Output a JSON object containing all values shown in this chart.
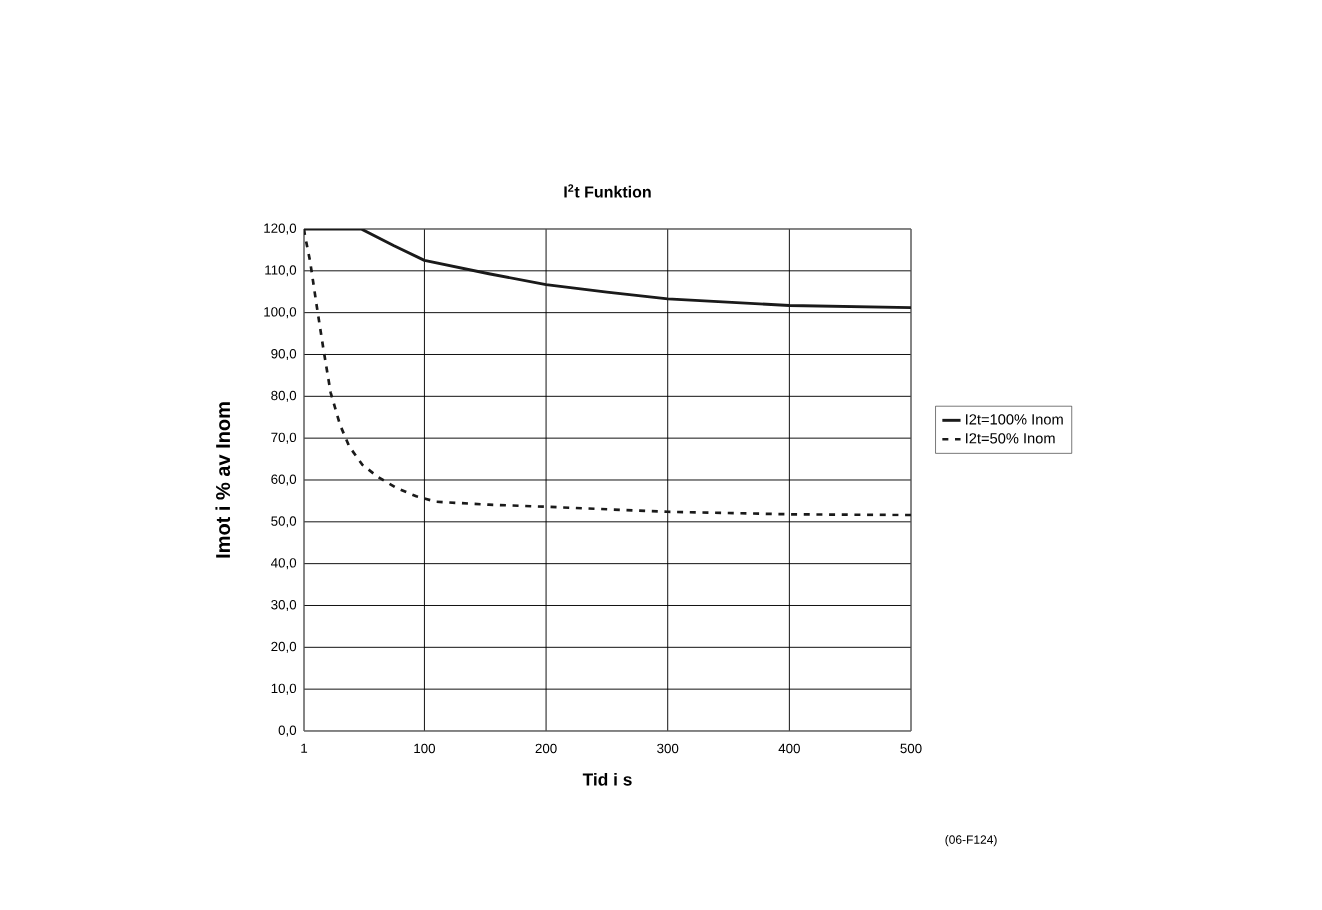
{
  "chart_data": {
    "type": "line",
    "title": "I$^{2}$t Funktion",
    "xlabel": "Tid i s",
    "ylabel": "Imot i % av Inom",
    "annotations": [
      "(06-F124)"
    ],
    "xlim": [
      1,
      500
    ],
    "xticks": [
      1,
      100,
      200,
      300,
      400,
      500
    ],
    "ylim": [
      0,
      120
    ],
    "yticks": [
      {
        "value": 0,
        "label": "0,0"
      },
      {
        "value": 10,
        "label": "10,0"
      },
      {
        "value": 20,
        "label": "20,0"
      },
      {
        "value": 30,
        "label": "30,0"
      },
      {
        "value": 40,
        "label": "40,0"
      },
      {
        "value": 50,
        "label": "50,0"
      },
      {
        "value": 60,
        "label": "60,0"
      },
      {
        "value": 70,
        "label": "70,0"
      },
      {
        "value": 80,
        "label": "80,0"
      },
      {
        "value": 90,
        "label": "90,0"
      },
      {
        "value": 100,
        "label": "100,0"
      },
      {
        "value": 110,
        "label": "110,0"
      },
      {
        "value": 120,
        "label": "120,0"
      }
    ],
    "grid": true,
    "legend": "right",
    "series": [
      {
        "name": "I2t=100% Inom",
        "color": "#1a1a1a",
        "line_style": "solid",
        "x": [
          1,
          48,
          75,
          100,
          153,
          200,
          250,
          300,
          400,
          500
        ],
        "values": [
          120,
          120,
          116.0,
          112.5,
          109.3,
          106.7,
          104.9,
          103.3,
          101.7,
          101.2
        ]
      },
      {
        "name": "I2t=50% Inom",
        "color": "#1a1a1a",
        "line_style": "dashed",
        "x": [
          1,
          1.8,
          6,
          11.4,
          16.9,
          22.9,
          30.6,
          38.2,
          49.1,
          61.9,
          77,
          93.3,
          109.7,
          153,
          200,
          300,
          400,
          500
        ],
        "values": [
          120,
          118.4,
          112.3,
          101.7,
          91.4,
          80.9,
          73.2,
          68.0,
          63.6,
          60.7,
          58.1,
          56.1,
          54.8,
          54.1,
          53.6,
          52.4,
          51.8,
          51.6
        ]
      }
    ]
  }
}
